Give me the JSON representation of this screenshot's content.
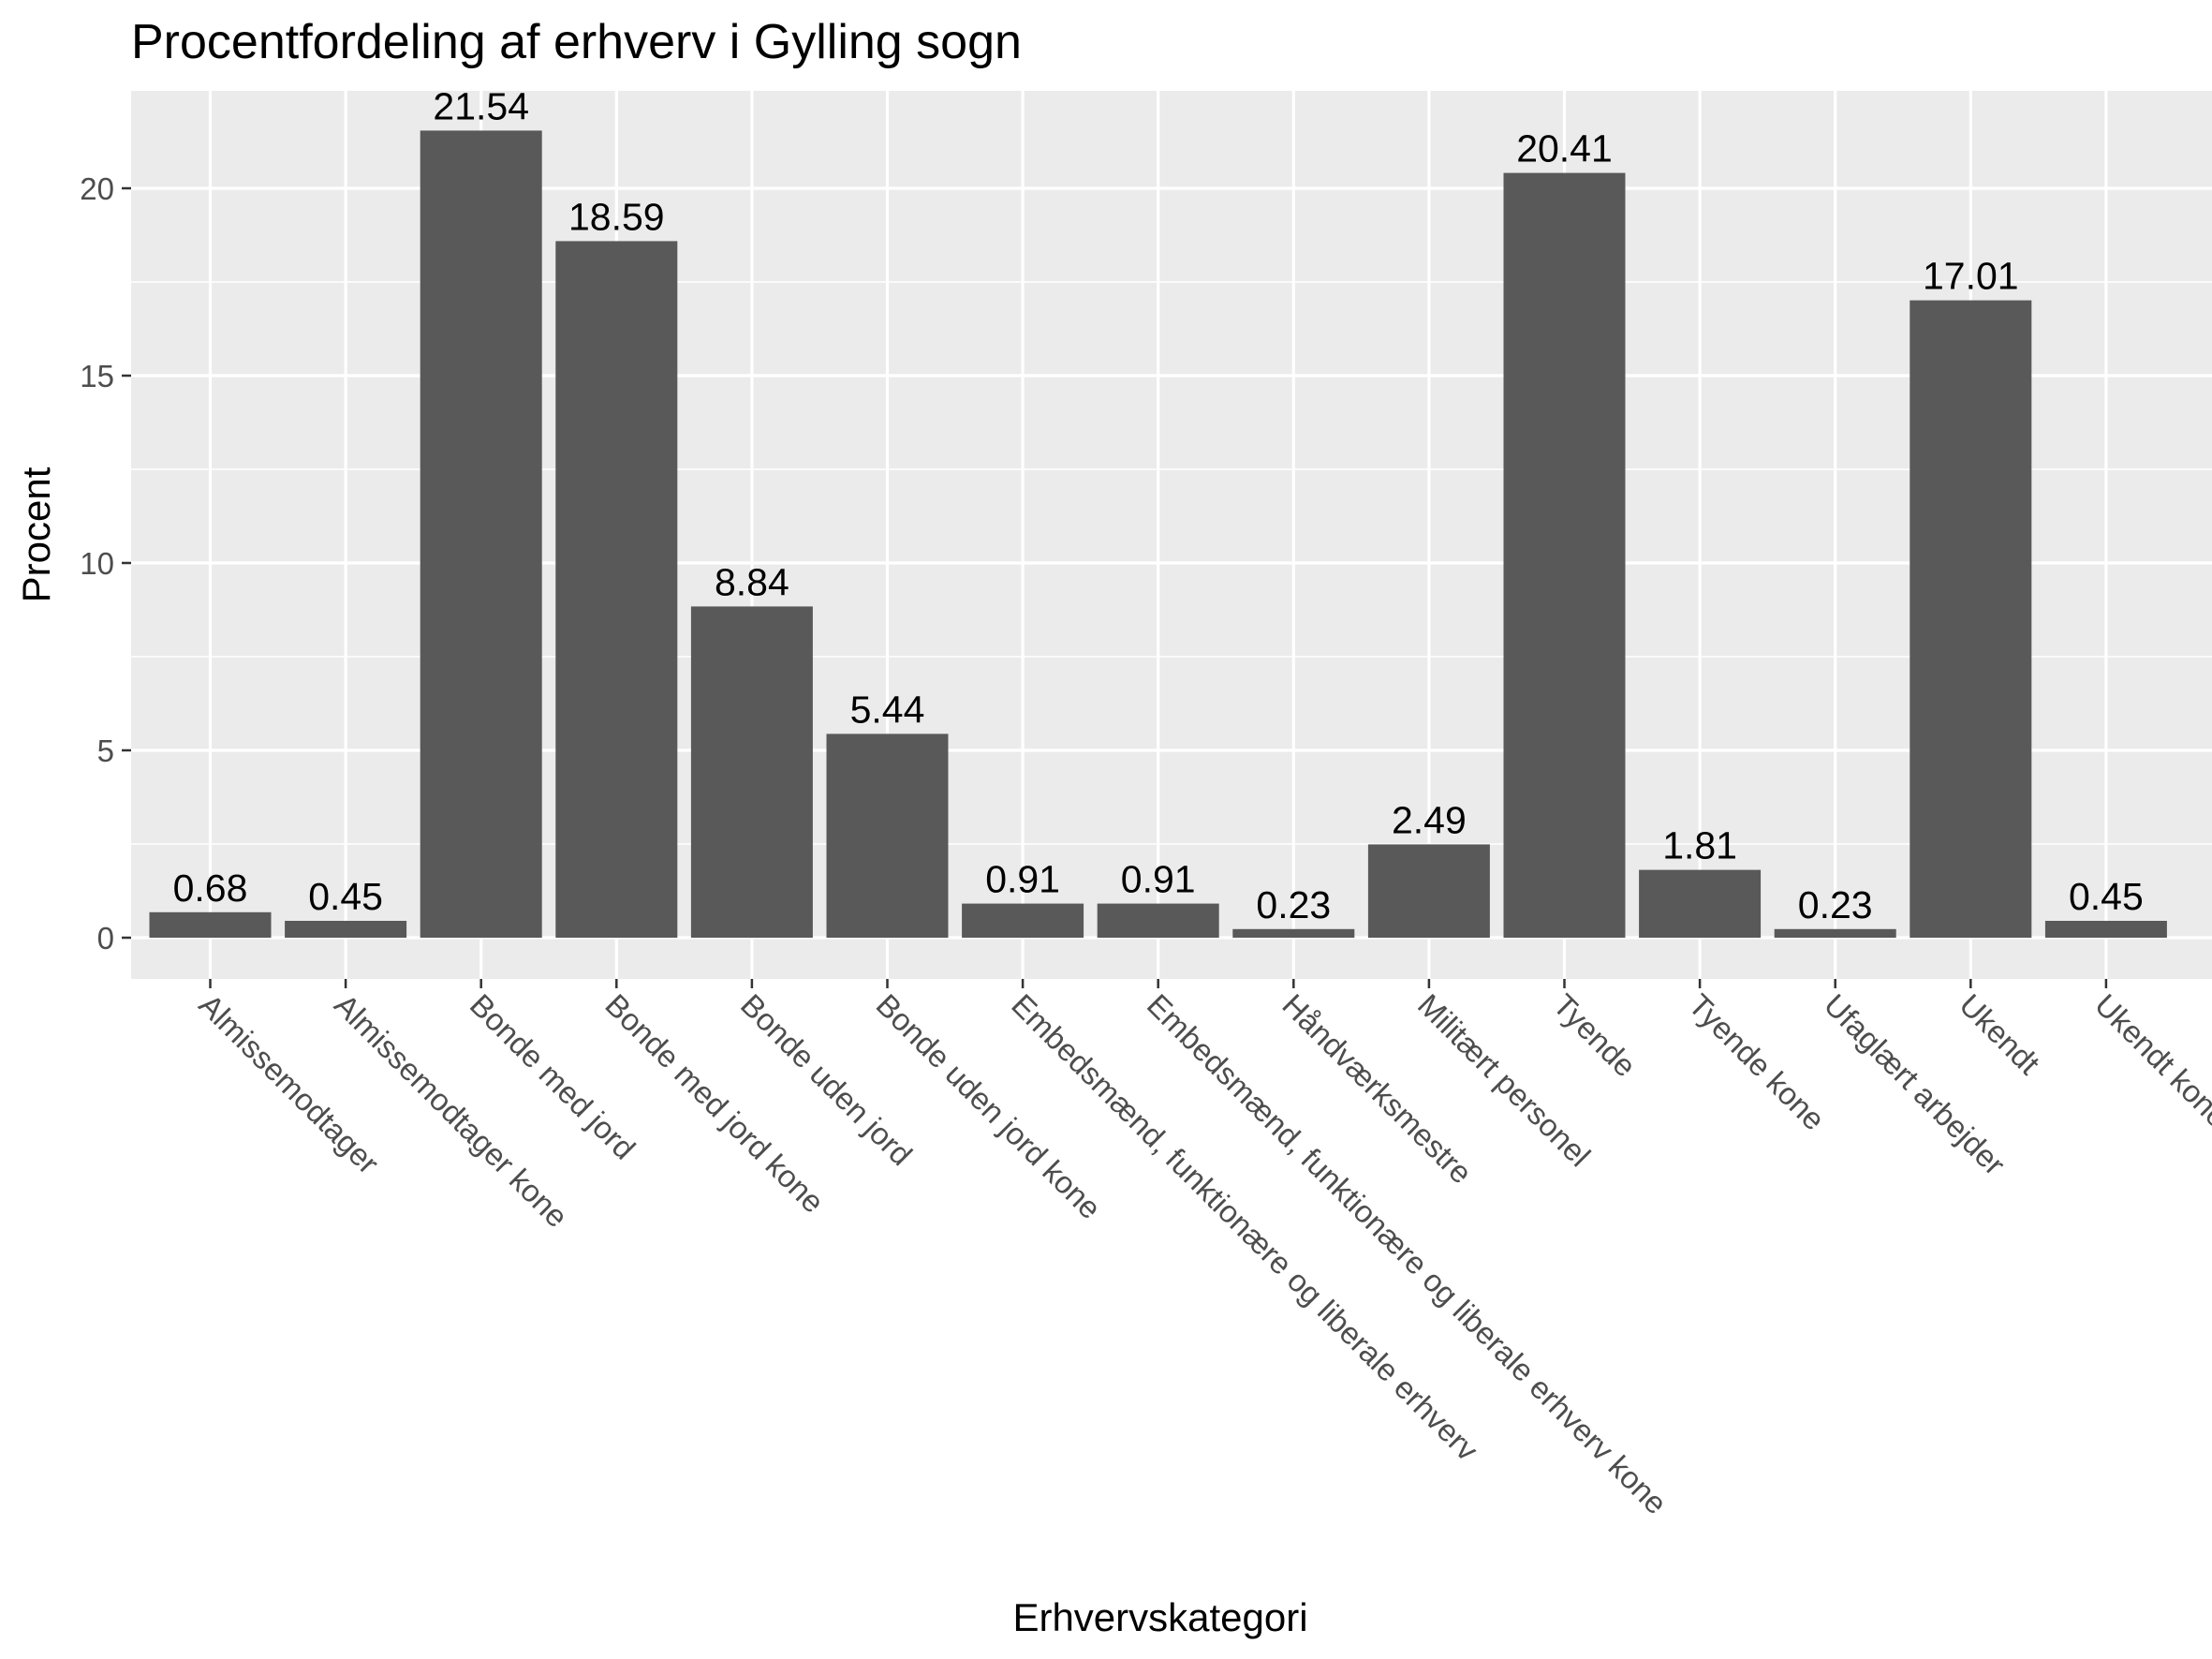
{
  "chart_data": {
    "type": "bar",
    "title": "Procentfordeling af erhverv i Gylling sogn",
    "xlabel": "Erhvervskategori",
    "ylabel": "Procent",
    "ylim": [
      -1.1,
      22.6
    ],
    "yticks": [
      0,
      5,
      10,
      15,
      20
    ],
    "grid": true,
    "categories": [
      "Almissemodtager",
      "Almissemodtager kone",
      "Bonde med jord",
      "Bonde med jord kone",
      "Bonde uden jord",
      "Bonde uden jord kone",
      "Embedsmænd, funktionære og liberale erhverv",
      "Embedsmænd, funktionære og liberale erhverv kone",
      "Håndværksmestre",
      "Militært personel",
      "Tyende",
      "Tyende kone",
      "Ufaglært arbejder",
      "Ukendt",
      "Ukendt kone"
    ],
    "values": [
      0.68,
      0.45,
      21.54,
      18.59,
      8.84,
      5.44,
      0.91,
      0.91,
      0.23,
      2.49,
      20.41,
      1.81,
      0.23,
      17.01,
      0.45
    ],
    "value_labels": [
      "0.68",
      "0.45",
      "21.54",
      "18.59",
      "8.84",
      "5.44",
      "0.91",
      "0.91",
      "0.23",
      "2.49",
      "20.41",
      "1.81",
      "0.23",
      "17.01",
      "0.45"
    ],
    "colors": {
      "bar": "#595959",
      "panel": "#ebebeb",
      "grid": "#ffffff",
      "tick_text": "#4d4d4d",
      "tick_line": "#333333"
    }
  }
}
